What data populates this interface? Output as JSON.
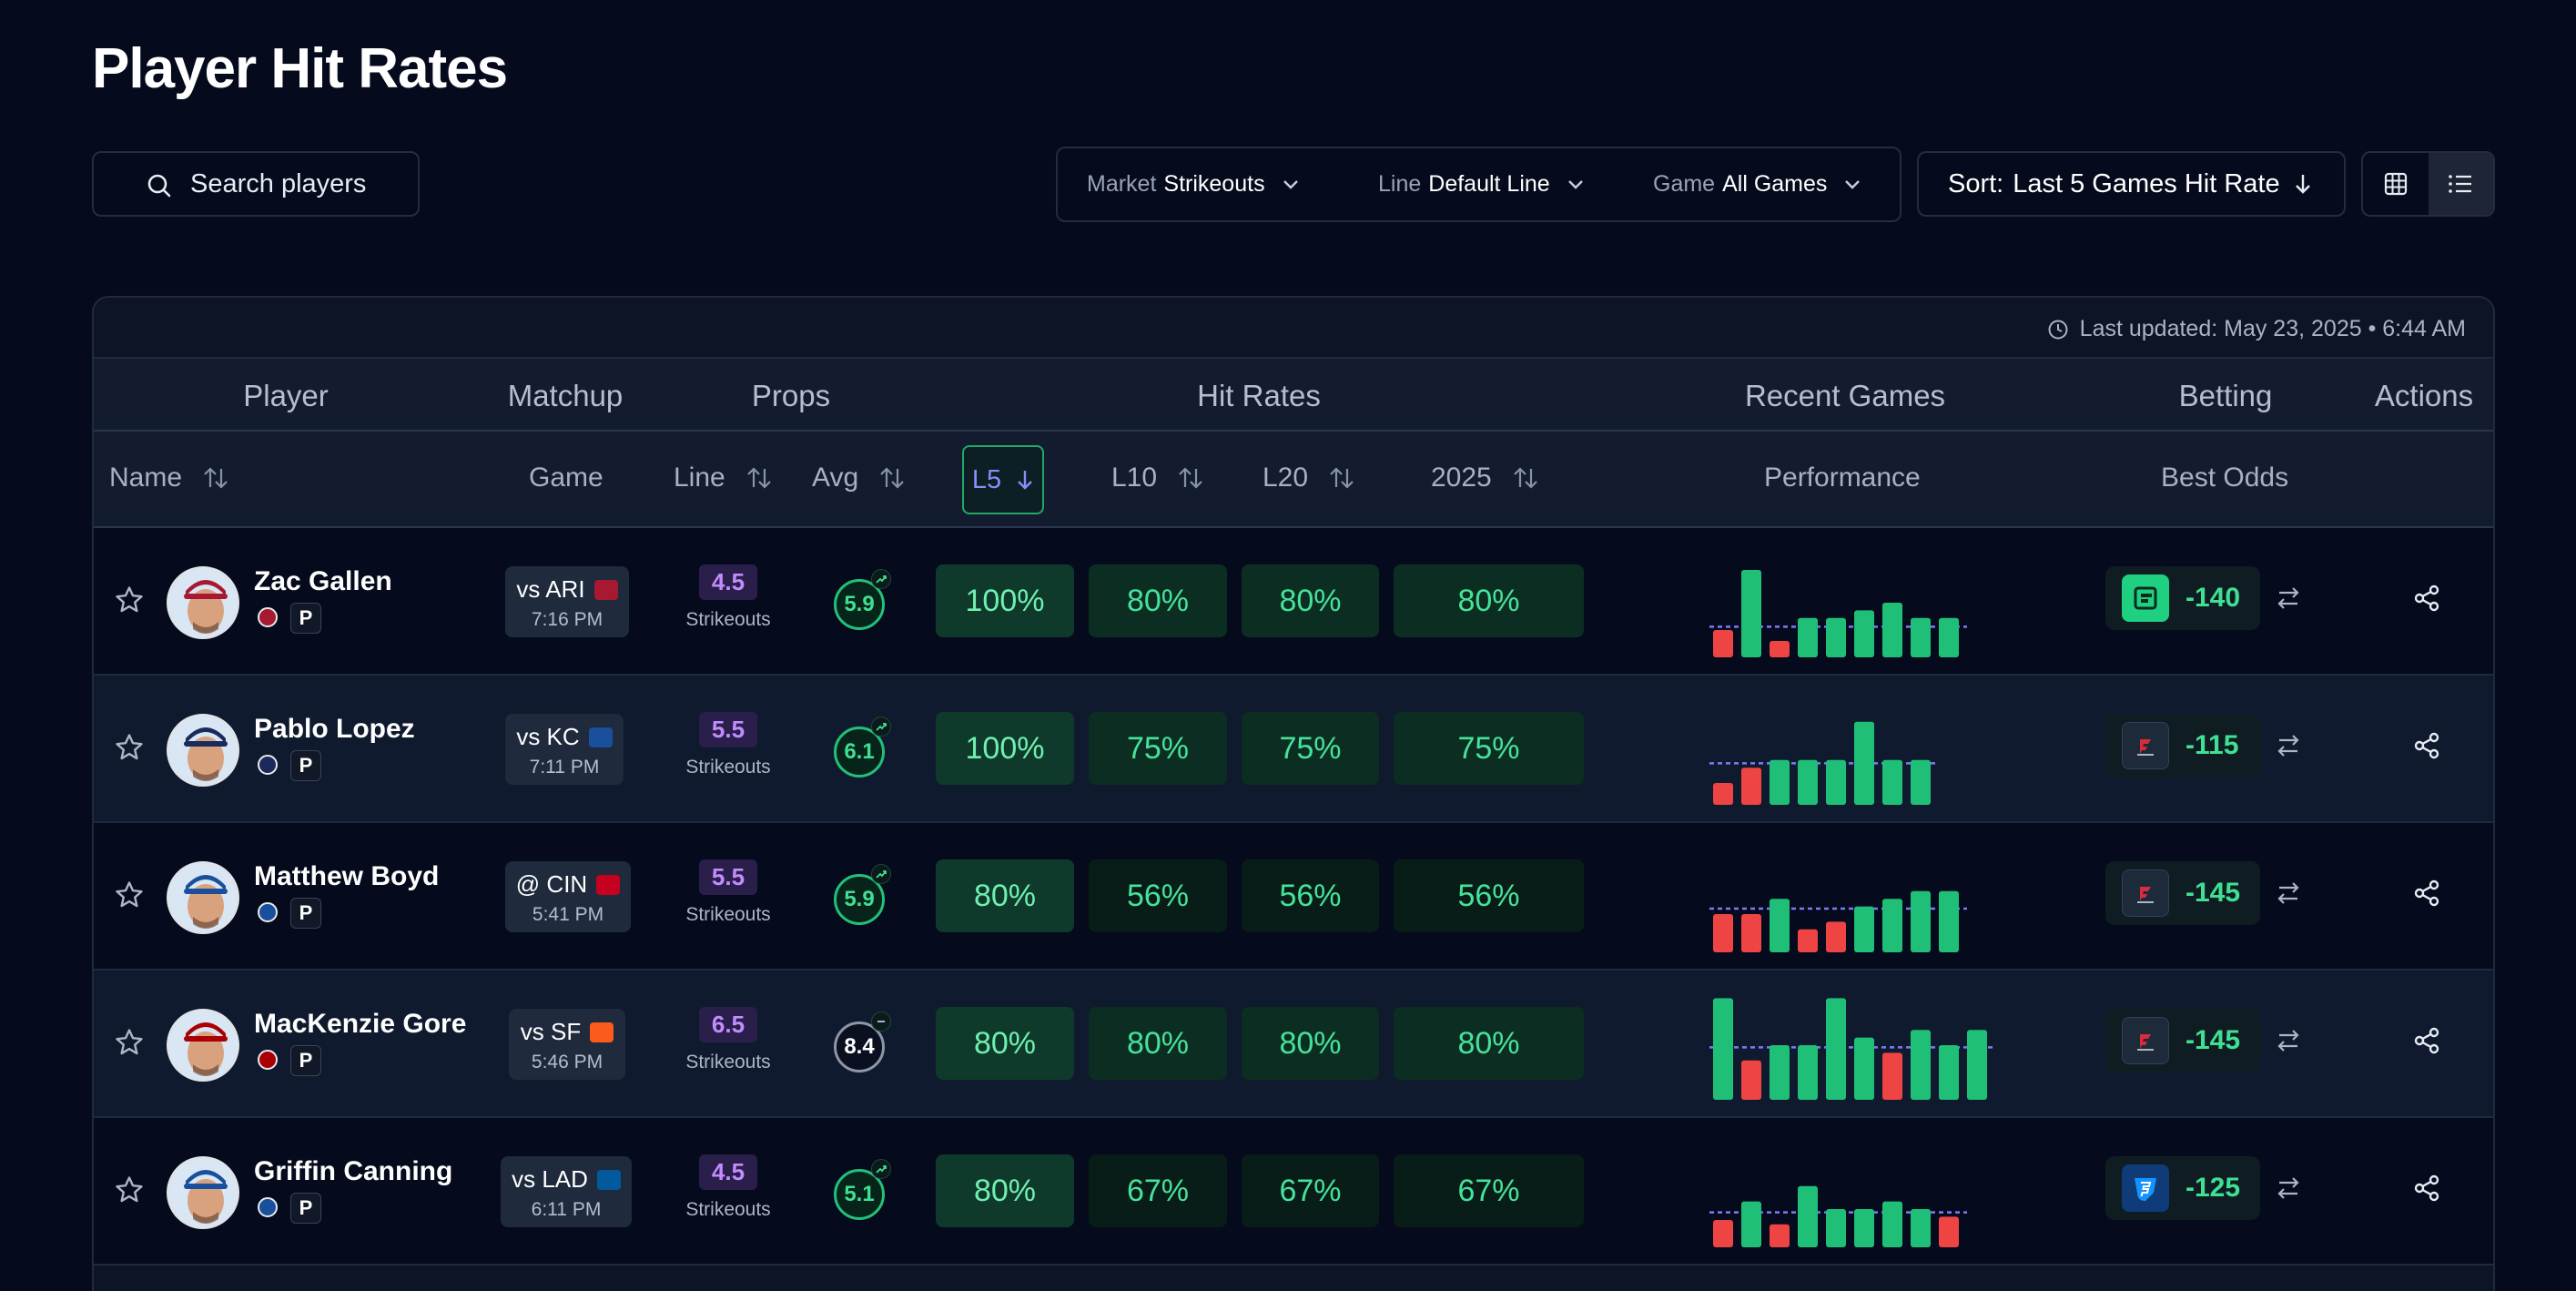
{
  "page": {
    "title": "Player Hit Rates"
  },
  "search": {
    "placeholder": "Search players"
  },
  "filters": {
    "market": {
      "label": "Market",
      "value": "Strikeouts"
    },
    "line": {
      "label": "Line",
      "value": "Default Line"
    },
    "game": {
      "label": "Game",
      "value": "All Games"
    }
  },
  "sort": {
    "label": "Sort:",
    "value": "Last 5 Games Hit Rate"
  },
  "table": {
    "updated": "Last updated: May 23, 2025 • 6:44 AM",
    "groups": [
      "Player",
      "Matchup",
      "Props",
      "Hit Rates",
      "Recent Games",
      "Betting",
      "Actions"
    ],
    "columns": {
      "name": "Name",
      "game": "Game",
      "line": "Line",
      "avg": "Avg",
      "l5": "L5",
      "l10": "L10",
      "l20": "L20",
      "season": "2025",
      "performance": "Performance",
      "best_odds": "Best Odds"
    },
    "rows": [
      {
        "name": "Zac Gallen",
        "pos": "P",
        "team_color": "#a71930",
        "matchup": "vs ARI",
        "opp_color": "#a71930",
        "time": "7:16 PM",
        "line": "4.5",
        "line_type": "Strikeouts",
        "avg": "5.9",
        "avg_trend": "up",
        "l5": "100%",
        "l10": "80%",
        "l20": "80%",
        "season": "80%",
        "book": "fanduel-square",
        "book_color": "#1ed07f",
        "odds": "-140",
        "games": [
          2.5,
          8,
          1.5,
          3.6,
          3.6,
          4.3,
          5,
          3.6,
          3.6
        ],
        "line_val": 2.8
      },
      {
        "name": "Pablo Lopez",
        "pos": "P",
        "team_color": "#1b2a5c",
        "matchup": "vs KC",
        "opp_color": "#1a4f9c",
        "time": "7:11 PM",
        "line": "5.5",
        "line_type": "Strikeouts",
        "avg": "6.1",
        "avg_trend": "up",
        "l5": "100%",
        "l10": "75%",
        "l20": "75%",
        "season": "75%",
        "book": "fanatics",
        "book_color": "#d92b3a",
        "odds": "-115",
        "games": [
          2,
          3.4,
          4.1,
          4.1,
          4.1,
          7.6,
          4.1,
          4.1
        ],
        "line_val": 3.8
      },
      {
        "name": "Matthew Boyd",
        "pos": "P",
        "team_color": "#1a4f9c",
        "matchup": "@ CIN",
        "opp_color": "#c6011f",
        "time": "5:41 PM",
        "line": "5.5",
        "line_type": "Strikeouts",
        "avg": "5.9",
        "avg_trend": "up",
        "l5": "80%",
        "l10": "56%",
        "l20": "56%",
        "season": "56%",
        "book": "fanatics",
        "book_color": "#d92b3a",
        "odds": "-145",
        "games": [
          3.5,
          3.5,
          4.9,
          2.1,
          2.8,
          4.2,
          4.9,
          5.6,
          5.6
        ],
        "line_val": 4
      },
      {
        "name": "MacKenzie Gore",
        "pos": "P",
        "team_color": "#ab0003",
        "matchup": "vs SF",
        "opp_color": "#fd5a1e",
        "time": "5:46 PM",
        "line": "6.5",
        "line_type": "Strikeouts",
        "avg": "8.4",
        "avg_trend": "flat",
        "l5": "80%",
        "l10": "80%",
        "l20": "80%",
        "season": "80%",
        "book": "fanatics",
        "book_color": "#d92b3a",
        "odds": "-145",
        "games": [
          9.3,
          3.6,
          5,
          5,
          9.3,
          5.7,
          4.3,
          6.4,
          5,
          6.4
        ],
        "line_val": 4.8
      },
      {
        "name": "Griffin Canning",
        "pos": "P",
        "team_color": "#1a4f9c",
        "matchup": "vs LAD",
        "opp_color": "#005a9c",
        "time": "6:11 PM",
        "line": "4.5",
        "line_type": "Strikeouts",
        "avg": "5.1",
        "avg_trend": "up",
        "l5": "80%",
        "l10": "67%",
        "l20": "67%",
        "season": "67%",
        "book": "fanduel-shield",
        "book_color": "#1493ff",
        "odds": "-125",
        "games": [
          2.5,
          4.2,
          2.1,
          5.6,
          3.5,
          3.5,
          4.2,
          3.5,
          2.8
        ],
        "line_val": 3.2
      }
    ]
  }
}
